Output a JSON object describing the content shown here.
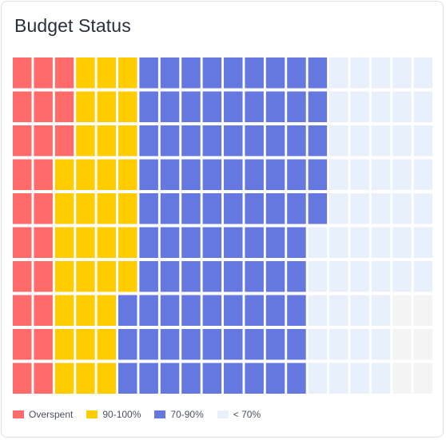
{
  "card": {
    "title": "Budget Status"
  },
  "chart_data": {
    "type": "waffle",
    "title": "Budget Status",
    "categories": [
      "Overspent",
      "90-100%",
      "70-90%",
      "< 70%"
    ],
    "colors": [
      "#ff6b6b",
      "#ffcc00",
      "#6478e0",
      "#e8f0fc"
    ],
    "empty_color": "#f4f4f4",
    "rows": 10,
    "columns": 20,
    "grid_cells": [
      [
        3,
        3,
        9,
        5
      ],
      [
        3,
        3,
        9,
        5
      ],
      [
        3,
        3,
        9,
        5
      ],
      [
        2,
        4,
        9,
        5
      ],
      [
        2,
        4,
        9,
        5
      ],
      [
        2,
        4,
        8,
        6
      ],
      [
        2,
        4,
        8,
        6
      ],
      [
        2,
        3,
        9,
        4
      ],
      [
        2,
        3,
        9,
        4
      ],
      [
        2,
        3,
        9,
        4
      ]
    ],
    "legend": {
      "position": "bottom-left",
      "items": [
        {
          "label": "Overspent",
          "color": "#ff6b6b"
        },
        {
          "label": "90-100%",
          "color": "#ffcc00"
        },
        {
          "label": "70-90%",
          "color": "#6478e0"
        },
        {
          "label": "< 70%",
          "color": "#e8f0fc"
        }
      ]
    }
  }
}
